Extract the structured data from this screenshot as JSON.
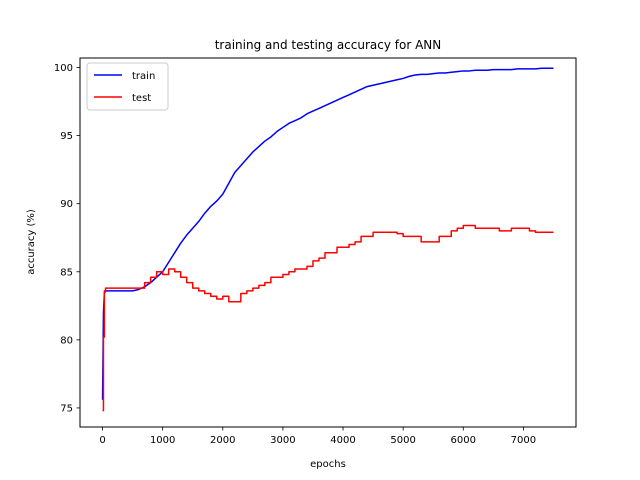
{
  "chart_data": {
    "type": "line",
    "title": "training and testing accuracy for ANN",
    "xlabel": "epochs",
    "ylabel": "accuracy (%)",
    "xlim": [
      -375,
      7875
    ],
    "ylim": [
      73.6,
      100.7
    ],
    "xticks": [
      0,
      1000,
      2000,
      3000,
      4000,
      5000,
      6000,
      7000
    ],
    "yticks": [
      75,
      80,
      85,
      90,
      95,
      100
    ],
    "grid": false,
    "legend_position": "upper-left",
    "series": [
      {
        "name": "train",
        "color": "#0000ff",
        "step": false,
        "x": [
          0,
          15,
          30,
          50,
          100,
          200,
          300,
          400,
          500,
          600,
          700,
          800,
          900,
          1000,
          1100,
          1200,
          1300,
          1400,
          1500,
          1600,
          1700,
          1800,
          1900,
          2000,
          2100,
          2200,
          2300,
          2400,
          2500,
          2600,
          2700,
          2800,
          2900,
          3000,
          3100,
          3200,
          3300,
          3400,
          3500,
          3600,
          3700,
          3800,
          3900,
          4000,
          4100,
          4200,
          4300,
          4400,
          4500,
          4600,
          4700,
          4800,
          4900,
          5000,
          5100,
          5200,
          5300,
          5400,
          5500,
          5600,
          5700,
          5800,
          5900,
          6000,
          6100,
          6200,
          6300,
          6400,
          6500,
          6600,
          6700,
          6800,
          6900,
          7000,
          7100,
          7200,
          7300,
          7400,
          7500
        ],
        "y": [
          75.6,
          82.0,
          83.4,
          83.6,
          83.6,
          83.6,
          83.6,
          83.6,
          83.6,
          83.7,
          83.9,
          84.2,
          84.6,
          85.0,
          85.7,
          86.4,
          87.1,
          87.7,
          88.2,
          88.7,
          89.3,
          89.8,
          90.2,
          90.7,
          91.5,
          92.3,
          92.8,
          93.3,
          93.8,
          94.2,
          94.6,
          94.9,
          95.3,
          95.6,
          95.9,
          96.1,
          96.3,
          96.6,
          96.8,
          97.0,
          97.2,
          97.4,
          97.6,
          97.8,
          98.0,
          98.2,
          98.4,
          98.6,
          98.7,
          98.8,
          98.9,
          99.0,
          99.1,
          99.2,
          99.35,
          99.45,
          99.5,
          99.5,
          99.55,
          99.6,
          99.6,
          99.65,
          99.7,
          99.75,
          99.75,
          99.8,
          99.8,
          99.8,
          99.85,
          99.85,
          99.85,
          99.85,
          99.9,
          99.9,
          99.9,
          99.9,
          99.95,
          99.95,
          99.95
        ]
      },
      {
        "name": "test",
        "color": "#ff0000",
        "step": true,
        "x": [
          0,
          15,
          30,
          50,
          700,
          800,
          900,
          1000,
          1100,
          1200,
          1300,
          1400,
          1500,
          1600,
          1700,
          1800,
          1900,
          2000,
          2100,
          2200,
          2300,
          2400,
          2500,
          2600,
          2700,
          2800,
          2900,
          3000,
          3100,
          3200,
          3300,
          3400,
          3500,
          3600,
          3700,
          3800,
          3900,
          4000,
          4100,
          4200,
          4300,
          4400,
          4500,
          4600,
          4700,
          4800,
          4900,
          5000,
          5100,
          5200,
          5300,
          5400,
          5500,
          5600,
          5700,
          5800,
          5900,
          6000,
          6100,
          6200,
          6300,
          6400,
          6500,
          6600,
          6700,
          6800,
          6900,
          7000,
          7100,
          7200,
          7300,
          7400,
          7500
        ],
        "y": [
          74.8,
          80.2,
          83.6,
          83.8,
          84.2,
          84.6,
          85.0,
          84.8,
          85.2,
          85.0,
          84.6,
          84.2,
          83.8,
          83.6,
          83.4,
          83.2,
          83.0,
          83.2,
          82.8,
          82.8,
          83.4,
          83.6,
          83.8,
          84.0,
          84.2,
          84.6,
          84.6,
          84.8,
          85.0,
          85.2,
          85.2,
          85.4,
          85.8,
          86.0,
          86.4,
          86.4,
          86.8,
          86.8,
          87.0,
          87.2,
          87.6,
          87.6,
          87.9,
          87.9,
          87.9,
          87.9,
          87.8,
          87.6,
          87.6,
          87.6,
          87.2,
          87.2,
          87.2,
          87.6,
          87.6,
          88.0,
          88.2,
          88.4,
          88.4,
          88.2,
          88.2,
          88.2,
          88.2,
          88.0,
          88.0,
          88.2,
          88.2,
          88.2,
          88.0,
          87.9,
          87.9,
          87.9,
          87.9
        ]
      }
    ]
  }
}
